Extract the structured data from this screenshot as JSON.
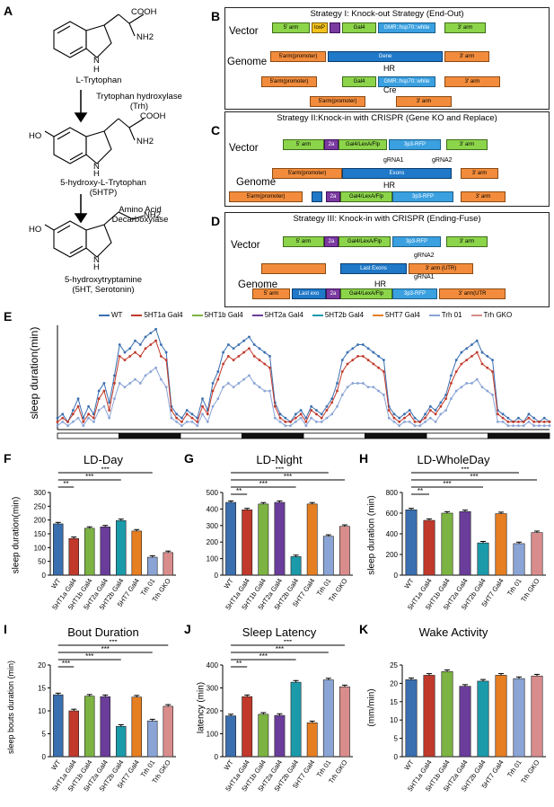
{
  "panels": {
    "A": "A",
    "B": "B",
    "C": "C",
    "D": "D",
    "E": "E",
    "F": "F",
    "G": "G",
    "H": "H",
    "I": "I",
    "J": "J",
    "K": "K"
  },
  "pathway": {
    "cooh1": "COOH",
    "nh2_1": "NH2",
    "h1": "H",
    "n1": "N",
    "trp": "L-Trytophan",
    "enzyme1": "Trytophan hydroxylase\n(Trh)",
    "cooh2": "COOH",
    "nh2_2": "NH2",
    "ho2": "HO",
    "n2": "N",
    "h2": "H",
    "htp": "5-hydroxy-L-Trytophan\n(5HTP)",
    "enzyme2": "Amino Acid\nDecarboxylase",
    "nh2_3": "NH2",
    "ho3": "HO",
    "n3": "N",
    "h3": "H",
    "ht": "5-hydroxytryptamine\n(5HT, Serotonin)"
  },
  "strategies": {
    "b_title": "Strategy I: Knock-out Strategy (End-Out)",
    "c_title": "Strategy II:Knock-in with CRISPR (Gene KO and Replace)",
    "d_title": "Strategy III: Knock-in with CRISPR (Ending-Fuse)",
    "vector": "Vector",
    "genome": "Genome",
    "hr": "HR",
    "cre": "Cre",
    "arm5": "5' arm",
    "arm3": "3' arm",
    "arm5p": "5'arm(promoter)",
    "gal4": "Gal4",
    "gmr": "GMR::hsp70::white",
    "gene": "Gene",
    "loxp": "loxP",
    "gal4lexa": "Gal4/LexA/Flp",
    "p2a": "2a",
    "rfp": "3p3-RFP",
    "exons": "Exons",
    "grna1": "gRNA1",
    "grna2": "gRNA2",
    "lastexons": "Last Exons",
    "lastexo": "Last exo",
    "arm3utr": "3' arm (UTR)",
    "arm3utr2": "3' arm(UTR"
  },
  "legend": [
    "WT",
    "5HT1a Gal4",
    "5HT1b Gal4",
    "5HT2a Gal4",
    "5HT2b Gal4",
    "5HT7 Gal4",
    "Trh 01",
    "Trh GKO"
  ],
  "series_colors": [
    "#3a6fb0",
    "#c0392b",
    "#7cb342",
    "#6a3d9a",
    "#1b9aaa",
    "#e67e22",
    "#8aa4d6",
    "#d98c8c"
  ],
  "genotype_labels": [
    "WT",
    "5HT1a Gal4",
    "5HT1b Gal4",
    "5HT2a Gal4",
    "5HT2b Gal4",
    "5HT7 Gal4",
    "Trh 01",
    "Trh GKO"
  ],
  "sig": "***",
  "sig2": "**",
  "chart_data": [
    {
      "panel": "E",
      "type": "line",
      "ylabel": "sleep duration(min)",
      "x_points": 96,
      "series": [
        {
          "name": "WT",
          "values": [
            3,
            4,
            2,
            5,
            8,
            3,
            6,
            4,
            10,
            12,
            7,
            14,
            22,
            20,
            21,
            23,
            22,
            24,
            25,
            26,
            22,
            20,
            6,
            4,
            3,
            5,
            4,
            3,
            8,
            5,
            12,
            15,
            20,
            22,
            21,
            22,
            23,
            24,
            22,
            21,
            20,
            19,
            7,
            4,
            3,
            2,
            4,
            5,
            3,
            6,
            5,
            4,
            6,
            8,
            12,
            18,
            20,
            21,
            22,
            22,
            21,
            20,
            19,
            18,
            6,
            4,
            3,
            4,
            5,
            3,
            2,
            4,
            6,
            5,
            7,
            9,
            14,
            18,
            20,
            21,
            22,
            23,
            20,
            19,
            18,
            5,
            4,
            3,
            2,
            3,
            2,
            4,
            3,
            2,
            3,
            2
          ]
        },
        {
          "name": "5HT1a Gal4",
          "values": [
            2,
            3,
            2,
            4,
            6,
            2,
            4,
            3,
            8,
            10,
            5,
            12,
            19,
            18,
            19,
            20,
            19,
            21,
            22,
            23,
            19,
            18,
            5,
            3,
            2,
            4,
            3,
            2,
            6,
            4,
            10,
            13,
            17,
            19,
            18,
            19,
            20,
            21,
            19,
            18,
            17,
            16,
            6,
            3,
            2,
            2,
            3,
            4,
            2,
            5,
            4,
            3,
            5,
            7,
            10,
            15,
            17,
            18,
            19,
            19,
            18,
            17,
            16,
            15,
            5,
            3,
            2,
            3,
            4,
            2,
            2,
            3,
            5,
            4,
            6,
            8,
            12,
            15,
            17,
            18,
            19,
            20,
            17,
            16,
            15,
            4,
            3,
            2,
            2,
            2,
            2,
            3,
            2,
            2,
            2,
            2
          ]
        },
        {
          "name": "Trh 01",
          "values": [
            1,
            2,
            1,
            2,
            3,
            1,
            3,
            2,
            5,
            6,
            3,
            8,
            12,
            11,
            12,
            13,
            12,
            14,
            15,
            16,
            13,
            11,
            3,
            2,
            1,
            2,
            2,
            1,
            4,
            2,
            6,
            8,
            11,
            12,
            11,
            12,
            13,
            14,
            12,
            11,
            10,
            10,
            3,
            2,
            1,
            1,
            2,
            3,
            1,
            3,
            2,
            2,
            3,
            4,
            6,
            9,
            11,
            12,
            12,
            12,
            11,
            11,
            10,
            9,
            3,
            2,
            1,
            2,
            2,
            1,
            1,
            2,
            3,
            2,
            4,
            5,
            8,
            10,
            11,
            12,
            12,
            13,
            11,
            10,
            9,
            2,
            2,
            1,
            1,
            1,
            1,
            2,
            1,
            1,
            1,
            1
          ]
        }
      ]
    },
    {
      "panel": "F",
      "type": "bar",
      "title": "LD-Day",
      "ylabel": "sleep duration(min)",
      "ylim": [
        0,
        300
      ],
      "yticks": [
        0,
        50,
        100,
        150,
        200,
        250,
        300
      ],
      "values": [
        186,
        133,
        170,
        175,
        198,
        160,
        65,
        82
      ]
    },
    {
      "panel": "G",
      "type": "bar",
      "title": "LD-Night",
      "ylabel": "",
      "ylim": [
        0,
        500
      ],
      "yticks": [
        0,
        100,
        200,
        300,
        400,
        500
      ],
      "values": [
        440,
        395,
        430,
        440,
        112,
        430,
        235,
        295
      ]
    },
    {
      "panel": "H",
      "type": "bar",
      "title": "LD-WholeDay",
      "ylabel": "sleep duration (min)",
      "ylim": [
        0,
        800
      ],
      "yticks": [
        0,
        200,
        400,
        600,
        800
      ],
      "values": [
        632,
        530,
        600,
        615,
        312,
        595,
        305,
        412
      ]
    },
    {
      "panel": "I",
      "type": "bar",
      "title": "Bout Duration",
      "ylabel": "sleep bouts duration (min)",
      "ylim": [
        0,
        20
      ],
      "yticks": [
        0,
        5,
        10,
        15,
        20
      ],
      "values": [
        13.5,
        10,
        13.2,
        13.1,
        6.6,
        13,
        7.8,
        11
      ]
    },
    {
      "panel": "J",
      "type": "bar",
      "title": "Sleep Latency",
      "ylabel": "latency (min)",
      "ylim": [
        0,
        400
      ],
      "yticks": [
        0,
        100,
        200,
        300,
        400
      ],
      "values": [
        178,
        262,
        185,
        180,
        325,
        148,
        335,
        305
      ]
    },
    {
      "panel": "K",
      "type": "bar",
      "title": "Wake Activity",
      "ylabel": "(mm/min)",
      "ylim": [
        0,
        25
      ],
      "yticks": [
        0,
        5,
        10,
        15,
        20,
        25
      ],
      "values": [
        21,
        22.2,
        23.2,
        19.2,
        20.6,
        22.2,
        21.3,
        22
      ]
    }
  ]
}
